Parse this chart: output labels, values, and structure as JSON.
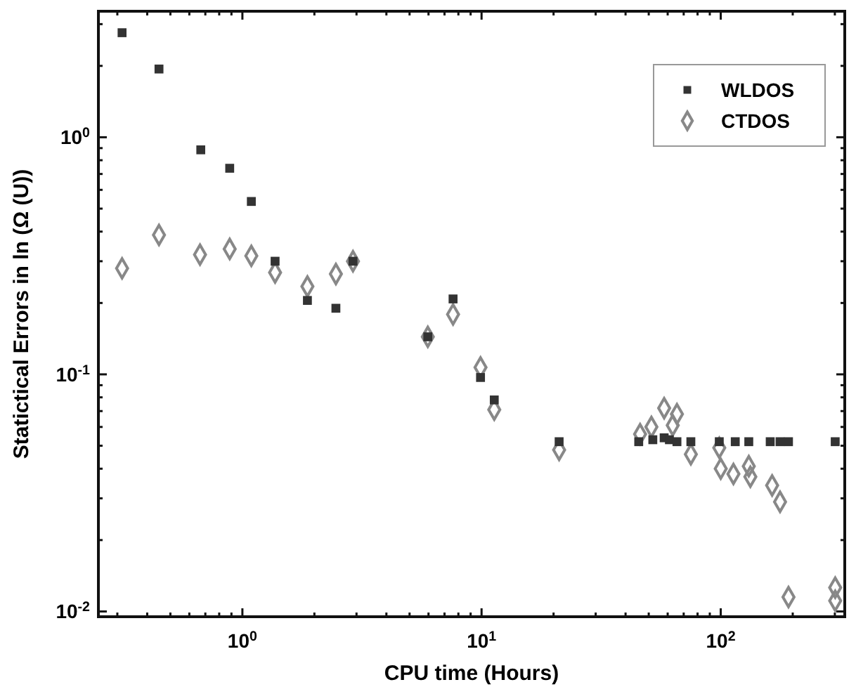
{
  "chart_data": {
    "type": "scatter",
    "xlabel": "CPU time (Hours)",
    "ylabel": "Statictical Errors in ln (Ω (U))",
    "log": "xy",
    "xlim": [
      0.25,
      330
    ],
    "ylim": [
      0.0095,
      3.4
    ],
    "xticks": [
      {
        "value": 0.3,
        "label": null
      },
      {
        "value": 0.4,
        "label": null
      },
      {
        "value": 0.5,
        "label": null
      },
      {
        "value": 0.6,
        "label": null
      },
      {
        "value": 0.7,
        "label": null
      },
      {
        "value": 0.8,
        "label": null
      },
      {
        "value": 0.9,
        "label": null
      },
      {
        "value": 1,
        "label": "10$^{0}$"
      },
      {
        "value": 2,
        "label": null
      },
      {
        "value": 3,
        "label": null
      },
      {
        "value": 4,
        "label": null
      },
      {
        "value": 5,
        "label": null
      },
      {
        "value": 6,
        "label": null
      },
      {
        "value": 7,
        "label": null
      },
      {
        "value": 8,
        "label": null
      },
      {
        "value": 9,
        "label": null
      },
      {
        "value": 10,
        "label": "10$^{1}$"
      },
      {
        "value": 20,
        "label": null
      },
      {
        "value": 30,
        "label": null
      },
      {
        "value": 40,
        "label": null
      },
      {
        "value": 50,
        "label": null
      },
      {
        "value": 60,
        "label": null
      },
      {
        "value": 70,
        "label": null
      },
      {
        "value": 80,
        "label": null
      },
      {
        "value": 90,
        "label": null
      },
      {
        "value": 100,
        "label": "10$^{2}$"
      },
      {
        "value": 200,
        "label": null
      },
      {
        "value": 300,
        "label": null
      }
    ],
    "yticks": [
      {
        "value": 0.01,
        "label": "10$^{-2}$"
      },
      {
        "value": 0.02,
        "label": null
      },
      {
        "value": 0.03,
        "label": null
      },
      {
        "value": 0.04,
        "label": null
      },
      {
        "value": 0.05,
        "label": null
      },
      {
        "value": 0.06,
        "label": null
      },
      {
        "value": 0.07,
        "label": null
      },
      {
        "value": 0.08,
        "label": null
      },
      {
        "value": 0.09,
        "label": null
      },
      {
        "value": 0.1,
        "label": "10$^{-1}$"
      },
      {
        "value": 0.2,
        "label": null
      },
      {
        "value": 0.3,
        "label": null
      },
      {
        "value": 0.4,
        "label": null
      },
      {
        "value": 0.5,
        "label": null
      },
      {
        "value": 0.6,
        "label": null
      },
      {
        "value": 0.7,
        "label": null
      },
      {
        "value": 0.8,
        "label": null
      },
      {
        "value": 0.9,
        "label": null
      },
      {
        "value": 1,
        "label": "10$^{0}$"
      },
      {
        "value": 2,
        "label": null
      },
      {
        "value": 3,
        "label": null
      }
    ],
    "legend": "top right",
    "grid": false,
    "series": [
      {
        "name": "WLDOS",
        "color": "#333333",
        "marker": "square",
        "x": [
          0.314,
          0.448,
          0.67,
          0.885,
          1.09,
          1.37,
          1.87,
          2.46,
          2.9,
          5.96,
          7.6,
          9.9,
          11.3,
          21.1,
          45.4,
          52,
          58,
          61,
          65.6,
          75,
          98.6,
          115,
          131,
          161,
          177,
          192,
          301
        ],
        "values": [
          2.76,
          1.94,
          0.885,
          0.74,
          0.536,
          0.3,
          0.205,
          0.19,
          0.3,
          0.144,
          0.208,
          0.097,
          0.078,
          0.052,
          0.052,
          0.053,
          0.054,
          0.053,
          0.052,
          0.052,
          0.052,
          0.052,
          0.052,
          0.052,
          0.052,
          0.052,
          0.052
        ]
      },
      {
        "name": "CTDOS",
        "color": "#888888",
        "marker": "diamond",
        "x": [
          0.314,
          0.448,
          0.665,
          0.885,
          1.09,
          1.37,
          1.87,
          2.46,
          2.9,
          5.96,
          7.6,
          9.9,
          11.3,
          21.1,
          46,
          51.3,
          58,
          63,
          65.6,
          75,
          98.6,
          100,
          113,
          131,
          133,
          164,
          177,
          192,
          301,
          301
        ],
        "values": [
          0.28,
          0.387,
          0.32,
          0.338,
          0.316,
          0.269,
          0.235,
          0.265,
          0.3,
          0.144,
          0.179,
          0.107,
          0.071,
          0.048,
          0.056,
          0.06,
          0.072,
          0.061,
          0.068,
          0.046,
          0.049,
          0.04,
          0.038,
          0.041,
          0.037,
          0.034,
          0.029,
          0.0115,
          0.0126,
          0.0111
        ]
      }
    ]
  }
}
